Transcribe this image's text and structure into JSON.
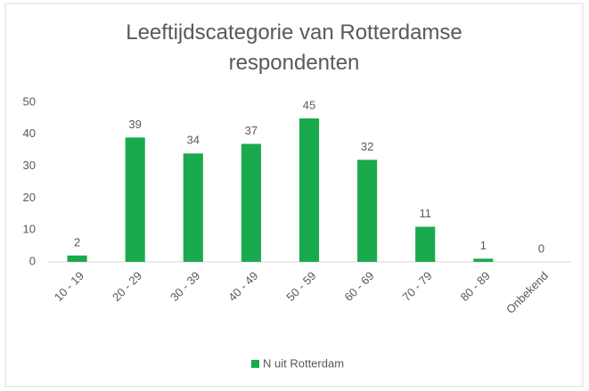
{
  "chart_data": {
    "type": "bar",
    "title": "Leeftijdscategorie van Rotterdamse respondenten",
    "categories": [
      "10 - 19",
      "20 - 29",
      "30 - 39",
      "40 - 49",
      "50 - 59",
      "60 - 69",
      "70 - 79",
      "80 - 89",
      "Onbekend"
    ],
    "series": [
      {
        "name": "N uit Rotterdam",
        "color": "#1aaa4e",
        "values": [
          2,
          39,
          34,
          37,
          45,
          32,
          11,
          1,
          0
        ]
      }
    ],
    "ylim": [
      0,
      50
    ],
    "yticks": [
      0,
      10,
      20,
      30,
      40,
      50
    ],
    "grid": false,
    "legend": "bottom"
  }
}
